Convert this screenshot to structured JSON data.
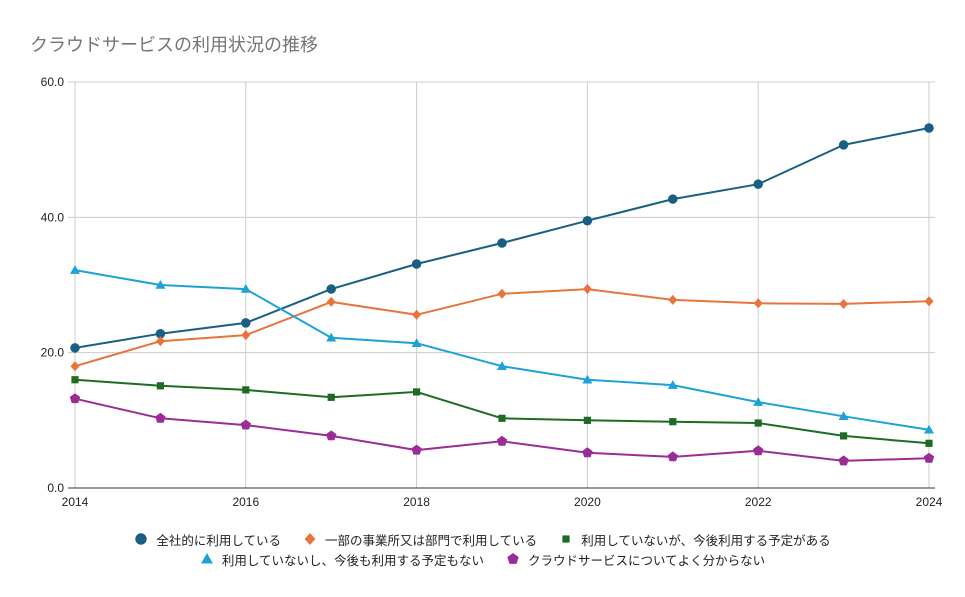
{
  "chart_data": {
    "type": "line",
    "title": "クラウドサービスの利用状況の推移",
    "xlabel": "",
    "ylabel": "",
    "x": [
      2014,
      2015,
      2016,
      2017,
      2018,
      2019,
      2020,
      2021,
      2022,
      2023,
      2024
    ],
    "x_ticks": [
      "2014",
      "2016",
      "2018",
      "2020",
      "2022",
      "2024"
    ],
    "x_tick_values": [
      2014,
      2016,
      2018,
      2020,
      2022,
      2024
    ],
    "xlim": [
      2014,
      2024
    ],
    "ylim": [
      0,
      60
    ],
    "y_ticks": [
      "0.0",
      "20.0",
      "40.0",
      "60.0"
    ],
    "y_tick_values": [
      0,
      20,
      40,
      60
    ],
    "grid": true,
    "legend_position": "bottom",
    "series": [
      {
        "name": "全社的に利用している",
        "color": "#195E83",
        "marker": "circle",
        "values": [
          20.7,
          22.8,
          24.4,
          29.4,
          33.1,
          36.2,
          39.5,
          42.7,
          44.9,
          50.7,
          53.2
        ]
      },
      {
        "name": "一部の事業所又は部門で利用している",
        "color": "#E8743B",
        "marker": "diamond",
        "values": [
          18.0,
          21.7,
          22.6,
          27.5,
          25.6,
          28.7,
          29.4,
          27.8,
          27.3,
          27.2,
          27.6
        ]
      },
      {
        "name": "利用していないが、今後利用する予定がある",
        "color": "#1E6B24",
        "marker": "square",
        "values": [
          16.0,
          15.1,
          14.5,
          13.4,
          14.2,
          10.3,
          10.0,
          9.8,
          9.6,
          7.7,
          6.6
        ]
      },
      {
        "name": "利用していないし、今後も利用する予定もない",
        "color": "#1DA1D6",
        "marker": "triangle",
        "values": [
          32.2,
          30.0,
          29.4,
          22.2,
          21.4,
          18.0,
          16.0,
          15.2,
          12.7,
          10.6,
          8.6
        ]
      },
      {
        "name": "クラウドサービスについてよく分からない",
        "color": "#9B2C96",
        "marker": "pentagon",
        "values": [
          13.2,
          10.3,
          9.3,
          7.7,
          5.6,
          6.9,
          5.2,
          4.6,
          5.5,
          4.0,
          4.4
        ]
      }
    ]
  },
  "legend": {
    "rows": [
      [
        0,
        1,
        2
      ],
      [
        3,
        4
      ]
    ]
  }
}
